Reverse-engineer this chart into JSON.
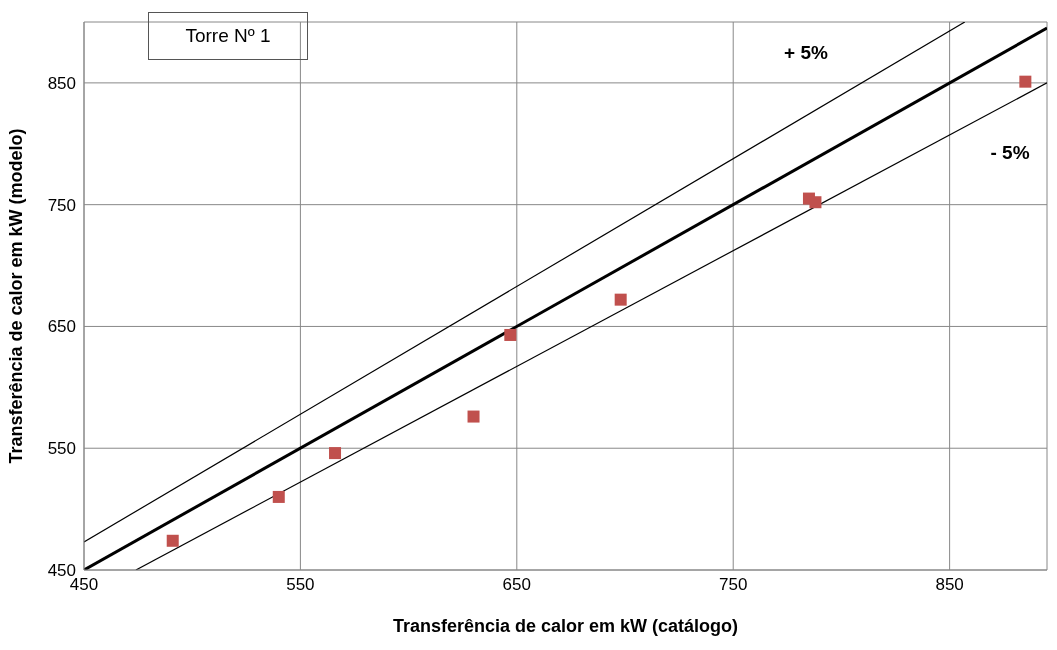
{
  "chart_data": {
    "type": "scatter",
    "xlabel": "Transferência de calor em kW (catálogo)",
    "ylabel": "Transferência de calor em kW (modelo)",
    "xlim": [
      450,
      895
    ],
    "ylim": [
      450,
      900
    ],
    "xticks": [
      450,
      550,
      650,
      750,
      850
    ],
    "yticks": [
      450,
      550,
      650,
      750,
      850
    ],
    "grid": true,
    "annotations": [
      "Torre Nº 1",
      "+ 5%",
      "- 5%"
    ],
    "series": [
      {
        "color": "#c0504d",
        "marker": "square",
        "x": [
          491,
          540,
          566,
          630,
          647,
          698,
          785,
          788,
          885
        ],
        "values": [
          474,
          510,
          546,
          576,
          643,
          672,
          755,
          752,
          851
        ]
      },
      {
        "type": "line",
        "color": "#000000",
        "marker": "none",
        "line_style": "solid",
        "x": [
          450,
          857
        ],
        "values": [
          473,
          900
        ]
      },
      {
        "type": "line",
        "color": "#000000",
        "marker": "none",
        "line_style": "solid",
        "x": [
          450,
          895
        ],
        "values": [
          450,
          895
        ]
      },
      {
        "type": "line",
        "color": "#000000",
        "marker": "none",
        "line_style": "solid",
        "x": [
          474,
          895
        ],
        "values": [
          450,
          850
        ]
      }
    ]
  }
}
